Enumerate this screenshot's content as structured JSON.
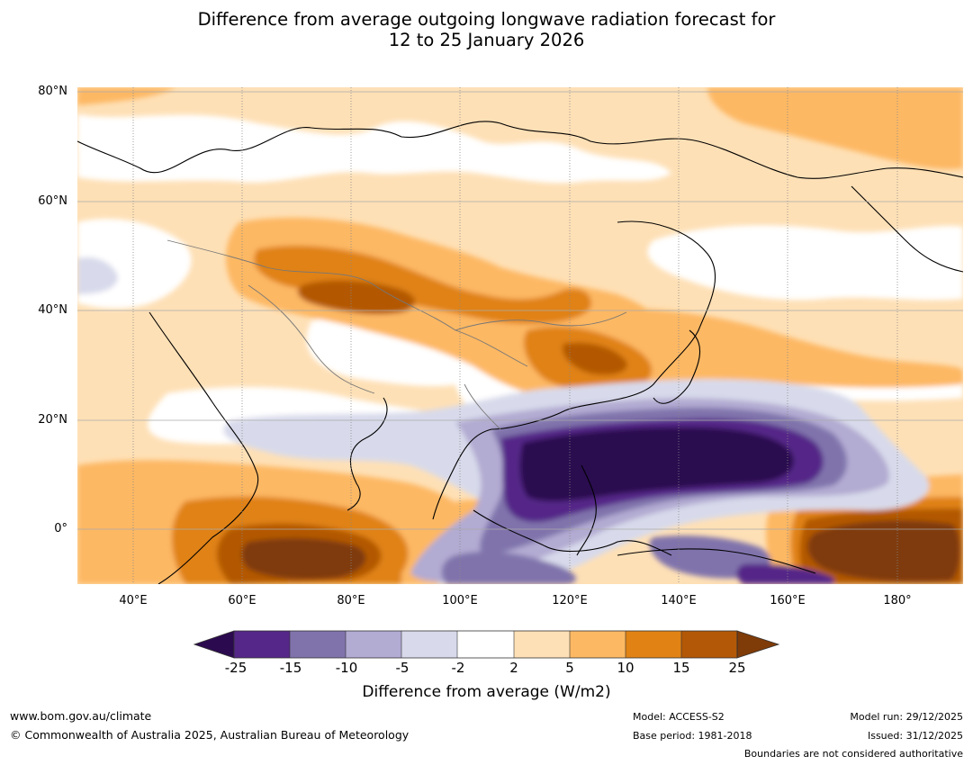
{
  "title": {
    "line1": "Difference from average outgoing longwave radiation forecast for",
    "line2": "12 to 25 January 2026"
  },
  "map": {
    "region": "Asia – Western Pacific",
    "lat_labels": [
      "80°N",
      "60°N",
      "40°N",
      "20°N",
      "0°"
    ],
    "lon_labels": [
      "40°E",
      "60°E",
      "80°E",
      "100°E",
      "120°E",
      "140°E",
      "160°E",
      "180°"
    ]
  },
  "colorbar": {
    "ticks": [
      "-25",
      "-15",
      "-10",
      "-5",
      "-2",
      "2",
      "5",
      "10",
      "15",
      "25"
    ],
    "colors": [
      "#2b0a4f",
      "#542788",
      "#8073ac",
      "#b2abd2",
      "#d8daeb",
      "#ffffff",
      "#fee0b6",
      "#fdb863",
      "#e08214",
      "#b35806",
      "#7f3b08"
    ],
    "label": "Difference from average (W/m2)"
  },
  "footer": {
    "website": "www.bom.gov.au/climate",
    "copyright": "© Commonwealth of Australia 2025, Australian Bureau of Meteorology",
    "model": "Model: ACCESS-S2",
    "base_period": "Base period: 1981-2018",
    "model_run": "Model run: 29/12/2025",
    "issued": "Issued: 31/12/2025",
    "disclaimer": "Boundaries are not considered authoritative"
  }
}
